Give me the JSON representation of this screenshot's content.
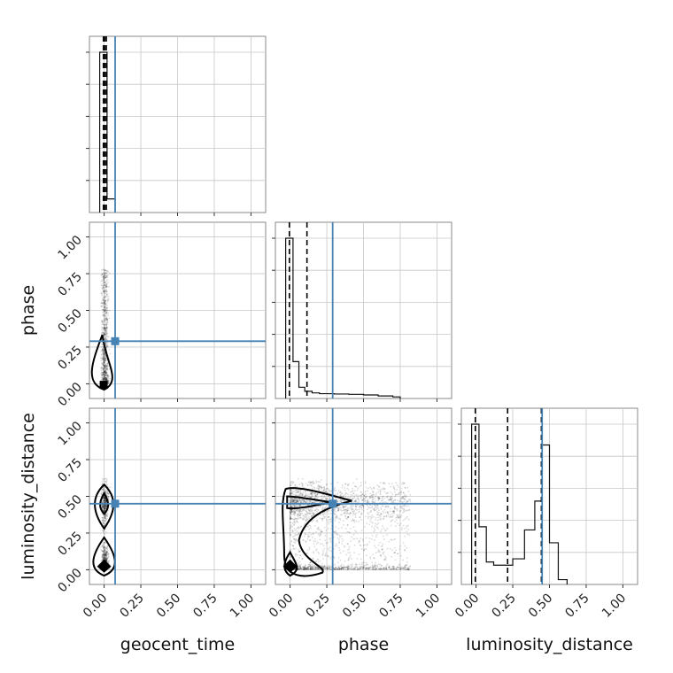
{
  "chart_data": {
    "type": "corner",
    "parameters": [
      "geocent_time",
      "phase",
      "luminosity_distance"
    ],
    "axis_range": [
      -0.1,
      1.1
    ],
    "ticks": [
      0.0,
      0.25,
      0.5,
      0.75,
      1.0
    ],
    "tick_labels": [
      "0.00",
      "0.25",
      "0.50",
      "0.75",
      "1.00"
    ],
    "grid": true,
    "colors": {
      "truth": "#4682b4",
      "histogram": "#111111",
      "samples": "#000000"
    },
    "truths": {
      "geocent_time": 0.075,
      "phase": 0.29,
      "luminosity_distance": 0.45
    },
    "quantiles": {
      "geocent_time": [
        -0.005,
        0.005,
        0.015
      ],
      "phase": [
        -0.005,
        0.115
      ],
      "luminosity_distance": [
        -0.005,
        0.215,
        0.445
      ]
    },
    "histograms": {
      "geocent_time": {
        "edges": [
          -0.03,
          0.02,
          0.075
        ],
        "counts": [
          1.0,
          0.085
        ]
      },
      "phase": {
        "edges": [
          -0.03,
          0.02,
          0.06,
          0.1,
          0.15,
          0.2,
          0.3,
          0.4,
          0.5,
          0.6,
          0.7,
          0.75
        ],
        "counts": [
          1.0,
          0.23,
          0.07,
          0.045,
          0.035,
          0.03,
          0.028,
          0.026,
          0.022,
          0.016,
          0.01
        ]
      },
      "luminosity_distance": {
        "edges": [
          -0.03,
          0.02,
          0.07,
          0.12,
          0.18,
          0.25,
          0.33,
          0.4,
          0.45,
          0.5,
          0.56,
          0.62
        ],
        "counts": [
          1.0,
          0.36,
          0.14,
          0.12,
          0.12,
          0.16,
          0.34,
          0.52,
          0.87,
          0.26,
          0.03
        ]
      }
    }
  }
}
